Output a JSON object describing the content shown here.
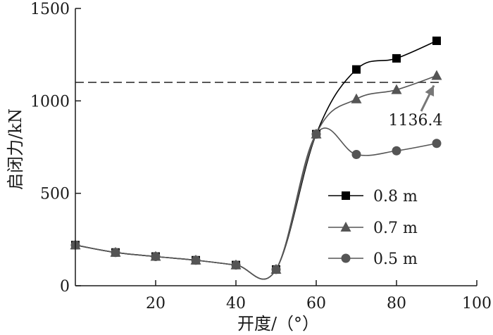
{
  "chart_data": {
    "type": "line",
    "xlabel": "开度/（°）",
    "ylabel": "启闭力/kN",
    "xlim": [
      0,
      100
    ],
    "ylim": [
      0,
      1500
    ],
    "xticks": [
      20,
      40,
      60,
      80,
      100
    ],
    "yticks": [
      0,
      500,
      1000,
      1500
    ],
    "reference_line": {
      "y": 1100,
      "style": "dashed"
    },
    "annotation": {
      "text": "1136.4",
      "target": {
        "x": 90,
        "y": 1136.4
      }
    },
    "legend_position": "lower-right",
    "series": [
      {
        "name": "0.8 m",
        "marker": "square",
        "color": "#000000",
        "points": [
          [
            0,
            220
          ],
          [
            10,
            180
          ],
          [
            20,
            158
          ],
          [
            30,
            138
          ],
          [
            40,
            112
          ],
          [
            50,
            88
          ],
          [
            60,
            820
          ],
          [
            70,
            1170
          ],
          [
            80,
            1230
          ],
          [
            90,
            1325
          ]
        ]
      },
      {
        "name": "0.7 m",
        "marker": "triangle",
        "color": "#555555",
        "points": [
          [
            0,
            220
          ],
          [
            10,
            180
          ],
          [
            20,
            158
          ],
          [
            30,
            138
          ],
          [
            40,
            112
          ],
          [
            50,
            88
          ],
          [
            60,
            820
          ],
          [
            70,
            1010
          ],
          [
            80,
            1060
          ],
          [
            90,
            1136.4
          ]
        ]
      },
      {
        "name": "0.5 m",
        "marker": "circle",
        "color": "#555555",
        "points": [
          [
            0,
            220
          ],
          [
            10,
            180
          ],
          [
            20,
            158
          ],
          [
            30,
            138
          ],
          [
            40,
            112
          ],
          [
            50,
            88
          ],
          [
            60,
            820
          ],
          [
            70,
            710
          ],
          [
            80,
            730
          ],
          [
            90,
            770
          ]
        ]
      }
    ]
  }
}
